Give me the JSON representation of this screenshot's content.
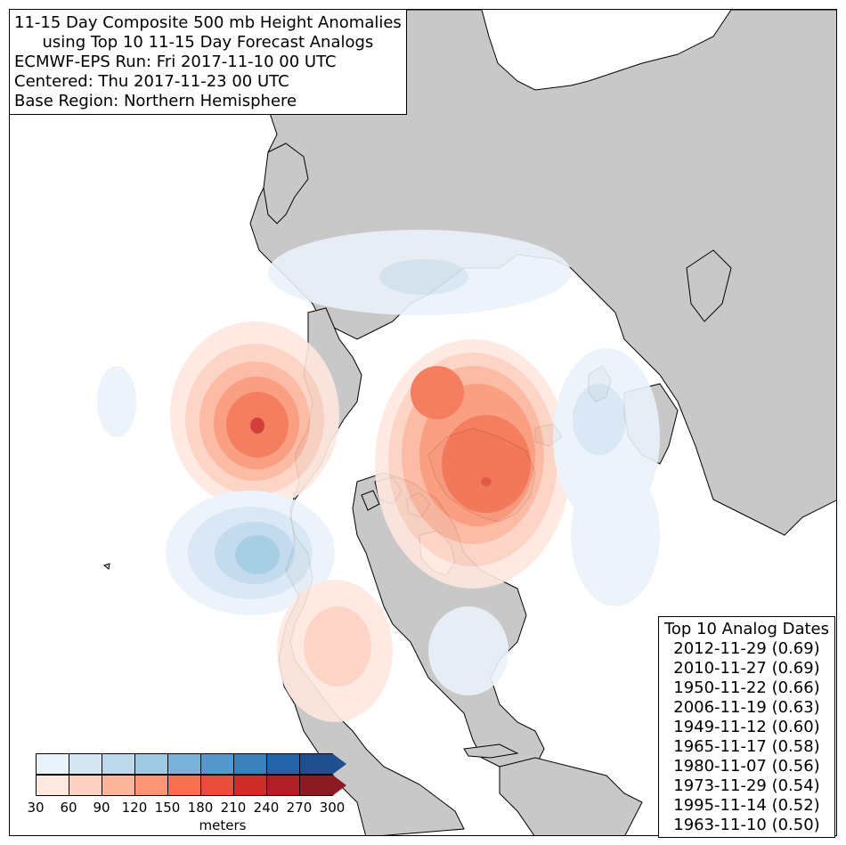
{
  "title": {
    "line1": "11-15 Day Composite 500 mb Height Anomalies",
    "line2": "using Top 10 11-15 Day Forecast Analogs",
    "line3": "ECMWF-EPS Run: Fri 2017-11-10 00 UTC",
    "line4": "Centered: Thu 2017-11-23 00 UTC",
    "line5": "Base Region: Northern Hemisphere"
  },
  "analogs": {
    "header": "Top 10 Analog Dates",
    "items": [
      "2012-11-29 (0.69)",
      "2010-11-27 (0.69)",
      "1950-11-22 (0.66)",
      "2006-11-19 (0.63)",
      "1949-11-12 (0.60)",
      "1965-11-17 (0.58)",
      "1980-11-07 (0.56)",
      "1973-11-29 (0.54)",
      "1995-11-14 (0.52)",
      "1963-11-10 (0.50)"
    ]
  },
  "colorbar": {
    "ticks": [
      "30",
      "60",
      "90",
      "120",
      "150",
      "180",
      "210",
      "240",
      "270",
      "300"
    ],
    "units": "meters",
    "negative_colors": [
      "#eaf2fa",
      "#d6e5f3",
      "#bed8ec",
      "#9fc9e0",
      "#79b2d8",
      "#5598cb",
      "#3a80bd",
      "#2463aa",
      "#1f4f8f"
    ],
    "positive_colors": [
      "#fee8df",
      "#fcd1c0",
      "#fcb49b",
      "#fb9576",
      "#f6714f",
      "#e94e3b",
      "#cf2c28",
      "#b01f26",
      "#8b1a22"
    ]
  },
  "map": {
    "land_color": "#c8c8c8",
    "ocean_color": "#ffffff",
    "projection": "north-polar-stereographic"
  }
}
